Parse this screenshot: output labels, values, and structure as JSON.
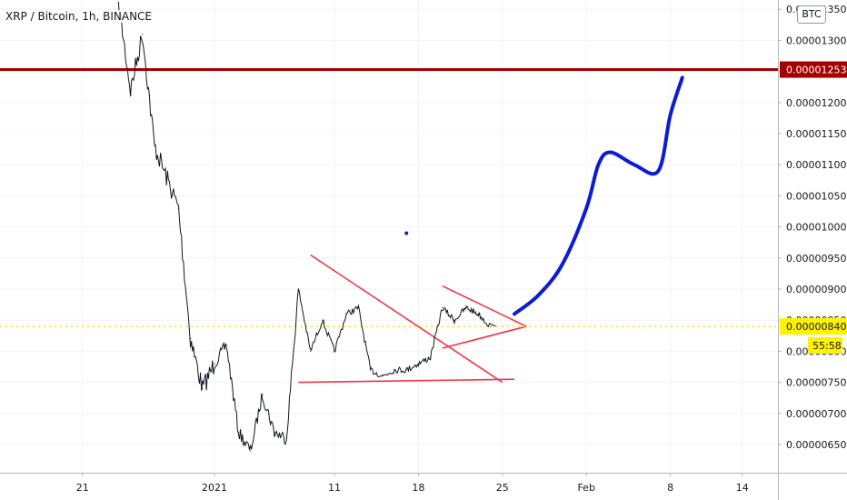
{
  "title": "XRP / Bitcoin, 1h, BINANCE",
  "currency_badge": "BTC",
  "colors": {
    "price_line": "#131722",
    "resistance_line": "#a50000",
    "trendlines": "#f23645",
    "projection": "#0b1bd6",
    "current_price_line": "#f5e500",
    "current_price_label_bg": "#fff200"
  },
  "chart_data": {
    "type": "line",
    "title": "XRP / Bitcoin, 1h, BINANCE",
    "ylim": [
      5.9e-06,
      1.37e-05
    ],
    "y_ticks": [
      "0.00000650",
      "0.00000700",
      "0.00000750",
      "0.00000800",
      "0.00000850",
      "0.00000900",
      "0.00000950",
      "0.00001000",
      "0.00001050",
      "0.00001100",
      "0.00001150",
      "0.00001200",
      "0.00001250",
      "0.00001300",
      "0.00001350"
    ],
    "x_ticks": [
      "21",
      "2021",
      "11",
      "18",
      "25",
      "Feb",
      "8",
      "14"
    ],
    "series": [
      {
        "values": [
          {
            "x": "2020-12-24",
            "y": 1.36e-05
          },
          {
            "x": "2020-12-25",
            "y": 1.22e-05
          },
          {
            "x": "2020-12-26",
            "y": 1.31e-05
          },
          {
            "x": "2020-12-27",
            "y": 1.13e-05
          },
          {
            "x": "2020-12-28",
            "y": 1.08e-05
          },
          {
            "x": "2020-12-29",
            "y": 1.03e-05
          },
          {
            "x": "2020-12-30",
            "y": 8.2e-06
          },
          {
            "x": "2020-12-31",
            "y": 7.4e-06
          },
          {
            "x": "2021-01-01",
            "y": 7.8e-06
          },
          {
            "x": "2021-01-02",
            "y": 8.1e-06
          },
          {
            "x": "2021-01-03",
            "y": 6.7e-06
          },
          {
            "x": "2021-01-04",
            "y": 6.4e-06
          },
          {
            "x": "2021-01-05",
            "y": 7.3e-06
          },
          {
            "x": "2021-01-06",
            "y": 6.7e-06
          },
          {
            "x": "2021-01-07",
            "y": 6.6e-06
          },
          {
            "x": "2021-01-08",
            "y": 9e-06
          },
          {
            "x": "2021-01-09",
            "y": 8e-06
          },
          {
            "x": "2021-01-10",
            "y": 8.5e-06
          },
          {
            "x": "2021-01-11",
            "y": 8e-06
          },
          {
            "x": "2021-01-12",
            "y": 8.6e-06
          },
          {
            "x": "2021-01-13",
            "y": 8.7e-06
          },
          {
            "x": "2021-01-14",
            "y": 7.7e-06
          },
          {
            "x": "2021-01-15",
            "y": 7.6e-06
          },
          {
            "x": "2021-01-16",
            "y": 7.7e-06
          },
          {
            "x": "2021-01-17",
            "y": 7.7e-06
          },
          {
            "x": "2021-01-18",
            "y": 7.8e-06
          },
          {
            "x": "2021-01-19",
            "y": 7.9e-06
          },
          {
            "x": "2021-01-20",
            "y": 8.7e-06
          },
          {
            "x": "2021-01-21",
            "y": 8.5e-06
          },
          {
            "x": "2021-01-22",
            "y": 8.7e-06
          },
          {
            "x": "2021-01-23",
            "y": 8.6e-06
          },
          {
            "x": "2021-01-24",
            "y": 8.4e-06
          }
        ]
      }
    ],
    "annotations": {
      "resistance_line": {
        "price_label": "0.00001253",
        "y": 1.253e-05
      },
      "current_price": {
        "price_label": "0.00000840",
        "y": 8.4e-06,
        "countdown": "55:58"
      },
      "trendlines": [
        {
          "from": {
            "x": "2021-01-09",
            "y": 9.55e-06
          },
          "to": {
            "x": "2021-01-25",
            "y": 7.5e-06
          }
        },
        {
          "from": {
            "x": "2021-01-08",
            "y": 7.5e-06
          },
          "to": {
            "x": "2021-01-26",
            "y": 7.55e-06
          }
        },
        {
          "from": {
            "x": "2021-01-20",
            "y": 9.05e-06
          },
          "to": {
            "x": "2021-01-27",
            "y": 8.4e-06
          }
        },
        {
          "from": {
            "x": "2021-01-20",
            "y": 8.05e-06
          },
          "to": {
            "x": "2021-01-27",
            "y": 8.4e-06
          }
        }
      ],
      "projection": [
        {
          "x": "2021-01-26",
          "y": 8.6e-06
        },
        {
          "x": "2021-01-28",
          "y": 8.9e-06
        },
        {
          "x": "2021-01-30",
          "y": 9.4e-06
        },
        {
          "x": "2021-02-01",
          "y": 1.03e-05
        },
        {
          "x": "2021-02-02",
          "y": 1.1e-05
        },
        {
          "x": "2021-02-03",
          "y": 1.12e-05
        },
        {
          "x": "2021-02-05",
          "y": 1.1e-05
        },
        {
          "x": "2021-02-07",
          "y": 1.09e-05
        },
        {
          "x": "2021-02-08",
          "y": 1.18e-05
        },
        {
          "x": "2021-02-09",
          "y": 1.24e-05
        }
      ],
      "projection_dot": {
        "x": "2021-01-17",
        "y": 9.9e-06
      }
    }
  }
}
